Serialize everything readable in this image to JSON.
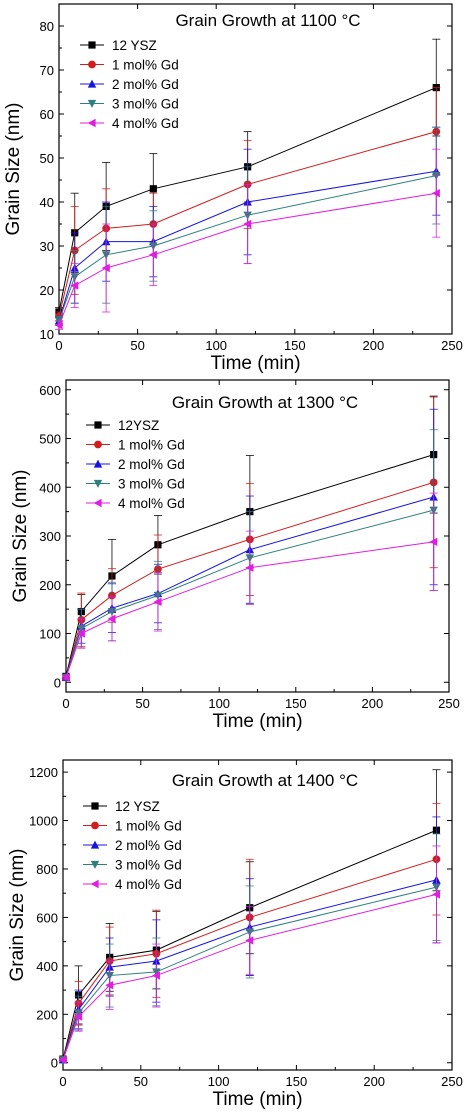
{
  "chart_data": [
    {
      "type": "line",
      "title": "Grain Growth at 1100 °C",
      "xlabel": "Time (min)",
      "ylabel": "Grain Size (nm)",
      "xlim": [
        0,
        250
      ],
      "ylim": [
        10,
        85
      ],
      "xticks": [
        "0",
        "50",
        "100",
        "150",
        "200",
        "250"
      ],
      "yticks": [
        "10",
        "20",
        "30",
        "40",
        "50",
        "60",
        "70",
        "80"
      ],
      "legend_position": "top-left",
      "x": [
        0,
        10,
        30,
        60,
        120,
        240
      ],
      "series": [
        {
          "name": "12 YSZ",
          "color": "#000000",
          "marker": "square",
          "values": [
            15,
            33,
            39,
            43,
            48,
            66
          ],
          "err": [
            1,
            9,
            10,
            8,
            8,
            11
          ]
        },
        {
          "name": "1 mol% Gd",
          "color": "#d11e1e",
          "marker": "circle",
          "values": [
            14,
            29,
            34,
            35,
            44,
            56
          ],
          "err": [
            1,
            10,
            9,
            7,
            10,
            10
          ]
        },
        {
          "name": "2 mol% Gd",
          "color": "#1515e0",
          "marker": "triangle-up",
          "values": [
            13,
            25,
            31,
            31,
            40,
            47
          ],
          "err": [
            1,
            8,
            9,
            8,
            12,
            10
          ]
        },
        {
          "name": "3 mol% Gd",
          "color": "#2f7f7f",
          "marker": "triangle-down",
          "values": [
            13,
            23,
            28,
            30,
            37,
            46
          ],
          "err": [
            1,
            6,
            11,
            8,
            11,
            11
          ]
        },
        {
          "name": "4 mol% Gd",
          "color": "#e01ee0",
          "marker": "triangle-left",
          "values": [
            12,
            21,
            25,
            28,
            35,
            42
          ],
          "err": [
            1,
            5,
            10,
            7,
            9,
            10
          ]
        }
      ]
    },
    {
      "type": "line",
      "title": "Grain Growth at 1300 °C",
      "xlabel": "Time (min)",
      "ylabel": "Grain Size (nm)",
      "xlim": [
        0,
        250
      ],
      "ylim": [
        -20,
        620
      ],
      "xticks": [
        "0",
        "50",
        "100",
        "150",
        "200",
        "250"
      ],
      "yticks": [
        "0",
        "100",
        "200",
        "300",
        "400",
        "500",
        "600"
      ],
      "legend_position": "top-left",
      "x": [
        0,
        10,
        30,
        60,
        120,
        240
      ],
      "series": [
        {
          "name": "12YSZ",
          "color": "#000000",
          "marker": "square",
          "values": [
            12,
            145,
            218,
            282,
            350,
            467
          ],
          "err": [
            5,
            35,
            75,
            60,
            115,
            120
          ]
        },
        {
          "name": "1 mol% Gd",
          "color": "#d11e1e",
          "marker": "circle",
          "values": [
            10,
            128,
            178,
            232,
            293,
            410
          ],
          "err": [
            5,
            55,
            55,
            70,
            115,
            175
          ]
        },
        {
          "name": "2 mol% Gd",
          "color": "#1515e0",
          "marker": "triangle-up",
          "values": [
            10,
            115,
            152,
            182,
            272,
            380
          ],
          "err": [
            5,
            35,
            50,
            60,
            110,
            180
          ]
        },
        {
          "name": "3 mol% Gd",
          "color": "#2f7f7f",
          "marker": "triangle-down",
          "values": [
            10,
            110,
            145,
            178,
            255,
            353
          ],
          "err": [
            5,
            40,
            60,
            70,
            95,
            165
          ]
        },
        {
          "name": "4 mol% Gd",
          "color": "#e01ee0",
          "marker": "triangle-left",
          "values": [
            10,
            100,
            130,
            165,
            235,
            288
          ],
          "err": [
            5,
            30,
            45,
            60,
            75,
            100
          ]
        }
      ]
    },
    {
      "type": "line",
      "title": "Grain Growth at 1400 °C",
      "xlabel": "Time (min)",
      "ylabel": "Grain Size (nm)",
      "xlim": [
        0,
        250
      ],
      "ylim": [
        -30,
        1250
      ],
      "xticks": [
        "0",
        "50",
        "100",
        "150",
        "200",
        "250"
      ],
      "yticks": [
        "0",
        "200",
        "400",
        "600",
        "800",
        "1000",
        "1200"
      ],
      "legend_position": "top-left",
      "x": [
        0,
        10,
        30,
        60,
        120,
        240
      ],
      "series": [
        {
          "name": "12 YSZ",
          "color": "#000000",
          "marker": "square",
          "values": [
            15,
            280,
            435,
            465,
            640,
            960
          ],
          "err": [
            5,
            120,
            140,
            160,
            190,
            250
          ]
        },
        {
          "name": "1 mol% Gd",
          "color": "#d11e1e",
          "marker": "circle",
          "values": [
            12,
            245,
            420,
            450,
            600,
            840
          ],
          "err": [
            5,
            90,
            140,
            180,
            240,
            230
          ]
        },
        {
          "name": "2 mol% Gd",
          "color": "#1515e0",
          "marker": "triangle-up",
          "values": [
            12,
            220,
            395,
            420,
            560,
            755
          ],
          "err": [
            5,
            80,
            120,
            170,
            200,
            260
          ]
        },
        {
          "name": "3 mol% Gd",
          "color": "#2f7f7f",
          "marker": "triangle-down",
          "values": [
            12,
            205,
            360,
            375,
            540,
            725
          ],
          "err": [
            5,
            70,
            130,
            140,
            190,
            220
          ]
        },
        {
          "name": "4 mol% Gd",
          "color": "#e01ee0",
          "marker": "triangle-left",
          "values": [
            12,
            190,
            320,
            360,
            505,
            695
          ],
          "err": [
            5,
            60,
            100,
            130,
            140,
            200
          ]
        }
      ]
    }
  ]
}
